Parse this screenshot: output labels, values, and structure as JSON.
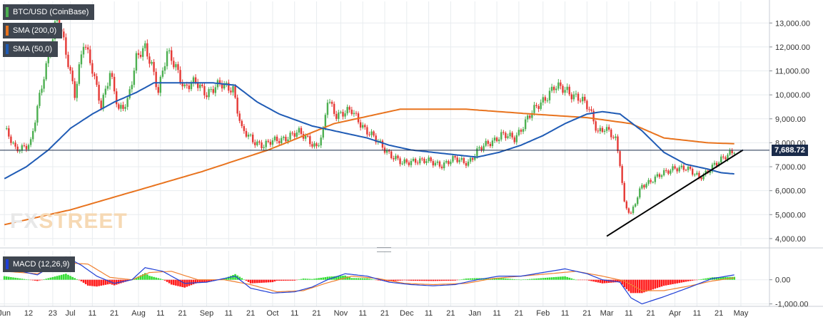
{
  "legend": {
    "main": "BTC/USD (CoinBase)",
    "sma200": "SMA (200,0)",
    "sma50": "SMA (50,0)",
    "macd": "MACD (12,26,9)"
  },
  "watermark": {
    "fx": "FX",
    "street": "STREET"
  },
  "last_price_label": "7,688.72",
  "colors": {
    "up": "#4caf50",
    "down": "#e53935",
    "sma200": "#e8731e",
    "sma50": "#1f5bb5",
    "trendline": "#000000",
    "macd_line": "#1f3fd6",
    "signal_line": "#f08030",
    "hist_pos": "#33dd33",
    "hist_neg": "#ff1a1a",
    "price_line": "#1a2b4a",
    "grid": "#e8ecef"
  },
  "chart_data": [
    {
      "type": "candlestick",
      "title": "BTC/USD (CoinBase)",
      "ylim": [
        3700,
        13900
      ],
      "y_ticks": [
        "4,000.00",
        "5,000.00",
        "6,000.00",
        "7,000.00",
        "8,000.00",
        "9,000.00",
        "10,000.00",
        "11,000.00",
        "12,000.00",
        "13,000.00"
      ],
      "y_tick_values": [
        4000,
        5000,
        6000,
        7000,
        8000,
        9000,
        10000,
        11000,
        12000,
        13000
      ],
      "x_ticks": [
        "Jun",
        "12",
        "23",
        "Jul",
        "11",
        "21",
        "Aug",
        "11",
        "21",
        "Sep",
        "11",
        "21",
        "Oct",
        "11",
        "21",
        "Nov",
        "11",
        "21",
        "Dec",
        "11",
        "21",
        "Jan",
        "11",
        "21",
        "Feb",
        "11",
        "21",
        "Mar",
        "11",
        "21",
        "Apr",
        "11",
        "21",
        "May"
      ],
      "x_tick_days": [
        0,
        11,
        22,
        30,
        40,
        50,
        61,
        71,
        81,
        92,
        102,
        112,
        122,
        132,
        142,
        153,
        163,
        173,
        183,
        193,
        203,
        214,
        224,
        234,
        245,
        255,
        265,
        274,
        284,
        294,
        305,
        315,
        325,
        335
      ],
      "price_path": [
        [
          0,
          8600
        ],
        [
          5,
          7700
        ],
        [
          12,
          8000
        ],
        [
          18,
          10800
        ],
        [
          24,
          13300
        ],
        [
          28,
          11700
        ],
        [
          32,
          10100
        ],
        [
          36,
          12200
        ],
        [
          40,
          11000
        ],
        [
          44,
          9600
        ],
        [
          48,
          10900
        ],
        [
          52,
          9300
        ],
        [
          56,
          9800
        ],
        [
          60,
          11500
        ],
        [
          64,
          11900
        ],
        [
          67,
          11300
        ],
        [
          70,
          10200
        ],
        [
          74,
          11700
        ],
        [
          78,
          11200
        ],
        [
          82,
          10300
        ],
        [
          87,
          10500
        ],
        [
          92,
          10100
        ],
        [
          98,
          10400
        ],
        [
          104,
          10300
        ],
        [
          108,
          8500
        ],
        [
          113,
          8100
        ],
        [
          118,
          7900
        ],
        [
          124,
          8100
        ],
        [
          130,
          8300
        ],
        [
          134,
          8400
        ],
        [
          138,
          8200
        ],
        [
          142,
          7800
        ],
        [
          145,
          8400
        ],
        [
          147,
          9800
        ],
        [
          151,
          9200
        ],
        [
          158,
          9300
        ],
        [
          164,
          8600
        ],
        [
          170,
          8000
        ],
        [
          176,
          7500
        ],
        [
          181,
          7100
        ],
        [
          187,
          7300
        ],
        [
          193,
          7200
        ],
        [
          199,
          7100
        ],
        [
          205,
          7300
        ],
        [
          211,
          7200
        ],
        [
          216,
          7700
        ],
        [
          220,
          8000
        ],
        [
          226,
          8300
        ],
        [
          232,
          8200
        ],
        [
          238,
          9000
        ],
        [
          244,
          9700
        ],
        [
          250,
          10300
        ],
        [
          256,
          10200
        ],
        [
          262,
          9800
        ],
        [
          266,
          9400
        ],
        [
          270,
          8500
        ],
        [
          273,
          8600
        ],
        [
          278,
          8100
        ],
        [
          280,
          7200
        ],
        [
          282,
          5500
        ],
        [
          285,
          5000
        ],
        [
          290,
          6200
        ],
        [
          295,
          6500
        ],
        [
          300,
          6700
        ],
        [
          305,
          7000
        ],
        [
          310,
          6900
        ],
        [
          316,
          6600
        ],
        [
          320,
          6800
        ],
        [
          324,
          7100
        ],
        [
          328,
          7500
        ],
        [
          332,
          7690
        ]
      ],
      "sma200_path": [
        [
          0,
          4580
        ],
        [
          30,
          5200
        ],
        [
          60,
          6000
        ],
        [
          90,
          6800
        ],
        [
          120,
          7700
        ],
        [
          150,
          8800
        ],
        [
          180,
          9400
        ],
        [
          210,
          9400
        ],
        [
          240,
          9200
        ],
        [
          265,
          9050
        ],
        [
          285,
          8800
        ],
        [
          300,
          8200
        ],
        [
          320,
          8000
        ],
        [
          332,
          7960
        ]
      ],
      "sma50_path": [
        [
          0,
          6500
        ],
        [
          10,
          7000
        ],
        [
          20,
          7700
        ],
        [
          30,
          8600
        ],
        [
          40,
          9200
        ],
        [
          50,
          9700
        ],
        [
          60,
          10100
        ],
        [
          68,
          10500
        ],
        [
          80,
          10500
        ],
        [
          95,
          10500
        ],
        [
          105,
          10400
        ],
        [
          115,
          9700
        ],
        [
          125,
          9200
        ],
        [
          140,
          8700
        ],
        [
          155,
          8400
        ],
        [
          165,
          8200
        ],
        [
          175,
          7900
        ],
        [
          185,
          7700
        ],
        [
          195,
          7600
        ],
        [
          205,
          7500
        ],
        [
          215,
          7400
        ],
        [
          225,
          7600
        ],
        [
          235,
          7900
        ],
        [
          245,
          8300
        ],
        [
          255,
          8800
        ],
        [
          265,
          9200
        ],
        [
          272,
          9300
        ],
        [
          280,
          9200
        ],
        [
          290,
          8500
        ],
        [
          300,
          7600
        ],
        [
          310,
          7100
        ],
        [
          320,
          6900
        ],
        [
          326,
          6750
        ],
        [
          332,
          6700
        ]
      ],
      "trendline": [
        [
          274,
          4100
        ],
        [
          336,
          7700
        ]
      ],
      "last_price": 7688.72
    },
    {
      "type": "macd",
      "title": "MACD (12,26,9)",
      "ylim": [
        -1100,
        1200
      ],
      "y_ticks": [
        "0.00",
        "-1,000.00"
      ],
      "y_tick_values": [
        0,
        -1000
      ],
      "macd_path": [
        [
          0,
          500
        ],
        [
          15,
          200
        ],
        [
          28,
          950
        ],
        [
          35,
          600
        ],
        [
          42,
          150
        ],
        [
          50,
          -150
        ],
        [
          58,
          0
        ],
        [
          64,
          500
        ],
        [
          72,
          350
        ],
        [
          82,
          -150
        ],
        [
          92,
          -100
        ],
        [
          105,
          150
        ],
        [
          112,
          -350
        ],
        [
          122,
          -550
        ],
        [
          132,
          -500
        ],
        [
          140,
          -300
        ],
        [
          147,
          0
        ],
        [
          155,
          250
        ],
        [
          165,
          150
        ],
        [
          175,
          -100
        ],
        [
          185,
          -200
        ],
        [
          195,
          -250
        ],
        [
          205,
          -200
        ],
        [
          215,
          0
        ],
        [
          225,
          150
        ],
        [
          235,
          150
        ],
        [
          245,
          300
        ],
        [
          255,
          450
        ],
        [
          265,
          250
        ],
        [
          272,
          0
        ],
        [
          280,
          -100
        ],
        [
          285,
          -750
        ],
        [
          290,
          -1000
        ],
        [
          300,
          -700
        ],
        [
          312,
          -300
        ],
        [
          322,
          50
        ],
        [
          332,
          200
        ]
      ],
      "signal_path": [
        [
          0,
          350
        ],
        [
          15,
          250
        ],
        [
          28,
          700
        ],
        [
          38,
          650
        ],
        [
          48,
          100
        ],
        [
          58,
          0
        ],
        [
          66,
          300
        ],
        [
          76,
          350
        ],
        [
          88,
          0
        ],
        [
          100,
          0
        ],
        [
          112,
          -200
        ],
        [
          124,
          -500
        ],
        [
          136,
          -450
        ],
        [
          146,
          -150
        ],
        [
          158,
          150
        ],
        [
          170,
          50
        ],
        [
          182,
          -150
        ],
        [
          195,
          -200
        ],
        [
          210,
          -150
        ],
        [
          222,
          50
        ],
        [
          235,
          150
        ],
        [
          248,
          250
        ],
        [
          260,
          350
        ],
        [
          272,
          150
        ],
        [
          282,
          -50
        ],
        [
          290,
          -450
        ],
        [
          300,
          -450
        ],
        [
          312,
          -250
        ],
        [
          322,
          -50
        ],
        [
          332,
          80
        ]
      ]
    }
  ]
}
